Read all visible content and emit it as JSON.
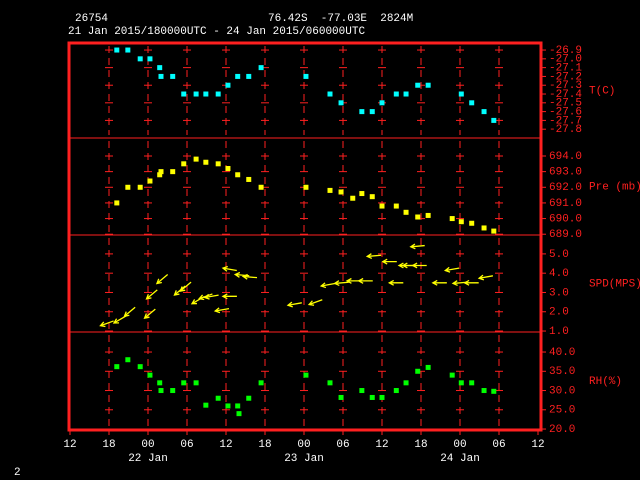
{
  "header": {
    "station": "26754",
    "location": "76.42S  -77.03E  2824M",
    "period": "21 Jan 2015/180000UTC - 24 Jan 2015/060000UTC"
  },
  "footer": "2",
  "x_axis": {
    "xlim": [
      0,
      72
    ],
    "xticks": [
      {
        "value": 0,
        "label": "12"
      },
      {
        "value": 6,
        "label": "18"
      },
      {
        "value": 12,
        "label": "00"
      },
      {
        "value": 18,
        "label": "06"
      },
      {
        "value": 24,
        "label": "12"
      },
      {
        "value": 30,
        "label": "18"
      },
      {
        "value": 36,
        "label": "00"
      },
      {
        "value": 42,
        "label": "06"
      },
      {
        "value": 48,
        "label": "12"
      },
      {
        "value": 54,
        "label": "18"
      },
      {
        "value": 60,
        "label": "00"
      },
      {
        "value": 66,
        "label": "06"
      },
      {
        "value": 72,
        "label": "12"
      }
    ],
    "day_labels": [
      {
        "value": 12,
        "label": "22 Jan"
      },
      {
        "value": 36,
        "label": "23 Jan"
      },
      {
        "value": 60,
        "label": "24 Jan"
      }
    ]
  },
  "chart_data": [
    {
      "type": "scatter",
      "y_label": "T(C)",
      "color": "#00ffff",
      "grid": true,
      "ylim": [
        -27.9,
        -26.82
      ],
      "yticks": [
        -26.9,
        {
          "value": -27.0,
          "label": "-27.0"
        },
        -27.1,
        -27.2,
        -27.3,
        -27.4,
        -27.5,
        -27.6,
        -27.7,
        -27.8
      ],
      "x": [
        7.2,
        8.9,
        10.8,
        12.3,
        13.8,
        14.0,
        15.8,
        17.5,
        19.4,
        20.9,
        22.8,
        24.3,
        25.8,
        27.5,
        29.4,
        36.3,
        40.0,
        41.7,
        44.9,
        46.5,
        48.0,
        50.2,
        51.7,
        53.5,
        55.1,
        60.2,
        61.8,
        63.7,
        65.2
      ],
      "values": [
        -26.9,
        -26.9,
        -27.0,
        -27.0,
        -27.1,
        -27.2,
        -27.2,
        -27.4,
        -27.4,
        -27.4,
        -27.4,
        -27.3,
        -27.2,
        -27.2,
        -27.1,
        -27.2,
        -27.4,
        -27.5,
        -27.6,
        -27.6,
        -27.5,
        -27.4,
        -27.4,
        -27.3,
        -27.3,
        -27.4,
        -27.5,
        -27.6,
        -27.7
      ]
    },
    {
      "type": "scatter",
      "y_label": "Pre (mb)",
      "color": "#ffff00",
      "grid": true,
      "ylim": [
        688.95,
        695.15
      ],
      "yticks": [
        {
          "value": 694,
          "label": "694.0"
        },
        {
          "value": 693,
          "label": "693.0"
        },
        {
          "value": 692,
          "label": "692.0"
        },
        {
          "value": 691,
          "label": "691.0"
        },
        {
          "value": 690,
          "label": "690.0"
        },
        {
          "value": 689,
          "label": "689.0"
        }
      ],
      "x": [
        7.2,
        8.9,
        10.8,
        12.3,
        13.8,
        14.0,
        15.8,
        17.5,
        19.4,
        20.9,
        22.8,
        24.3,
        25.8,
        27.5,
        29.4,
        36.3,
        40.0,
        41.7,
        43.5,
        44.9,
        46.5,
        48.0,
        50.2,
        51.7,
        53.5,
        55.1,
        58.8,
        60.2,
        61.8,
        63.7,
        65.2
      ],
      "values": [
        691.0,
        692.0,
        692.0,
        692.4,
        692.8,
        693.0,
        693.0,
        693.5,
        693.8,
        693.6,
        693.5,
        693.2,
        692.8,
        692.5,
        692.0,
        692.0,
        691.8,
        691.7,
        691.3,
        691.6,
        691.4,
        690.8,
        690.8,
        690.4,
        690.1,
        690.2,
        690.0,
        689.8,
        689.7,
        689.4,
        689.2
      ]
    },
    {
      "type": "wind",
      "y_label": "SPD(MPS)",
      "color": "#ffff00",
      "grid": true,
      "ylim": [
        0.95,
        5.98
      ],
      "yticks": [
        {
          "value": 5,
          "label": "5.0"
        },
        {
          "value": 4,
          "label": "4.0"
        },
        {
          "value": 3,
          "label": "3.0"
        },
        {
          "value": 2,
          "label": "2.0"
        },
        {
          "value": 1,
          "label": "1.0"
        }
      ],
      "x": [
        5.7,
        7.7,
        9.2,
        12.3,
        12.6,
        14.2,
        16.9,
        17.8,
        19.7,
        20.9,
        21.8,
        23.4,
        24.6,
        24.6,
        26.5,
        27.7,
        34.6,
        37.8,
        39.7,
        41.8,
        43.7,
        45.5,
        46.8,
        49.2,
        50.2,
        51.7,
        52.3,
        53.5,
        53.8,
        56.9,
        58.8,
        60.0,
        61.8,
        64.0
      ],
      "values": [
        1.4,
        1.6,
        2.0,
        1.9,
        2.9,
        3.7,
        3.1,
        3.3,
        2.6,
        2.8,
        2.8,
        2.1,
        2.8,
        4.2,
        3.9,
        3.8,
        2.4,
        2.5,
        3.4,
        3.5,
        3.6,
        3.6,
        4.9,
        4.6,
        3.5,
        4.4,
        4.4,
        5.4,
        4.4,
        3.5,
        4.2,
        3.5,
        3.5,
        3.8
      ],
      "directions": [
        70,
        60,
        50,
        50,
        50,
        50,
        50,
        50,
        60,
        70,
        80,
        80,
        90,
        100,
        95,
        95,
        80,
        70,
        80,
        85,
        90,
        90,
        85,
        90,
        90,
        90,
        90,
        85,
        90,
        90,
        80,
        85,
        90,
        80
      ]
    },
    {
      "type": "scatter",
      "y_label": "RH(%)",
      "color": "#00ff00",
      "grid": true,
      "ylim": [
        19.75,
        45.2
      ],
      "yticks": [
        {
          "value": 40,
          "label": "40.0"
        },
        {
          "value": 35,
          "label": "35.0"
        },
        {
          "value": 30,
          "label": "30.0"
        },
        {
          "value": 25,
          "label": "25.0"
        },
        {
          "value": 20,
          "label": "20.0"
        }
      ],
      "x": [
        7.2,
        8.9,
        10.8,
        12.3,
        13.8,
        14.0,
        15.8,
        17.5,
        19.4,
        20.9,
        22.8,
        24.3,
        25.8,
        26.0,
        27.5,
        29.4,
        36.3,
        40.0,
        41.7,
        44.9,
        46.5,
        48.0,
        50.2,
        51.7,
        53.5,
        55.1,
        58.8,
        60.2,
        61.8,
        63.7,
        65.2
      ],
      "values": [
        36.2,
        38.0,
        36.2,
        34.0,
        32.0,
        30.0,
        30.0,
        32.0,
        32.0,
        26.2,
        28.0,
        26.0,
        26.0,
        24.0,
        28.0,
        32.0,
        34.0,
        32.0,
        28.2,
        30.0,
        28.2,
        28.2,
        30.0,
        32.0,
        35.0,
        36.0,
        34.0,
        32.0,
        32.0,
        30.0,
        29.8
      ]
    }
  ]
}
